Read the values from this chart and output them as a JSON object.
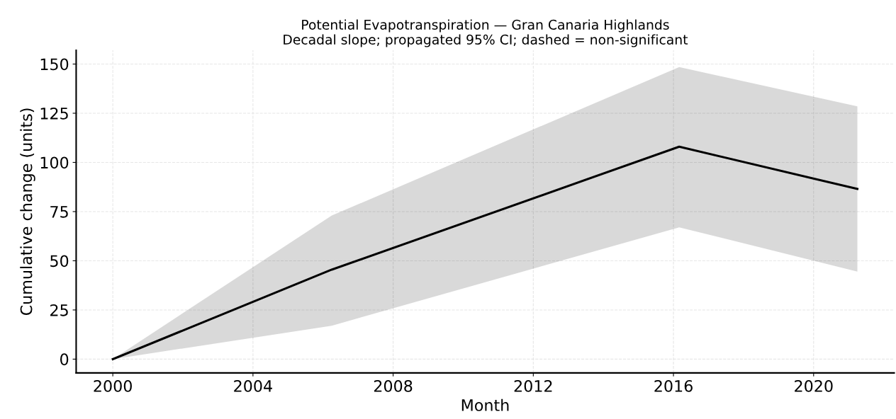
{
  "chart_data": {
    "type": "line",
    "title": "Potential Evapotranspiration — Gran Canaria Highlands",
    "subtitle": "Decadal slope; propagated 95% CI; dashed = non-significant",
    "xlabel": "Month",
    "ylabel": "Cumulative change (units)",
    "x": [
      "2000-01",
      "2006-04",
      "2016-03",
      "2021-04"
    ],
    "series": [
      {
        "color": "#000000",
        "values": [
          0,
          45.5,
          108,
          86.5
        ],
        "lower": [
          0,
          17,
          67,
          44.5
        ],
        "upper": [
          0,
          73,
          148.5,
          128.5
        ]
      }
    ],
    "xlim": [
      "1998-12-15",
      "2022-04-20"
    ],
    "xticks": [
      {
        "value": "2000-01-01",
        "label": "2000"
      },
      {
        "value": "2004-01-01",
        "label": "2004"
      },
      {
        "value": "2008-01-01",
        "label": "2008"
      },
      {
        "value": "2012-01-01",
        "label": "2012"
      },
      {
        "value": "2016-01-01",
        "label": "2016"
      },
      {
        "value": "2020-01-01",
        "label": "2020"
      }
    ],
    "ylim": [
      -7,
      157
    ],
    "yticks": [
      0,
      25,
      50,
      75,
      100,
      125,
      150
    ],
    "grid": true,
    "marker": "none",
    "line_style": "solid"
  }
}
